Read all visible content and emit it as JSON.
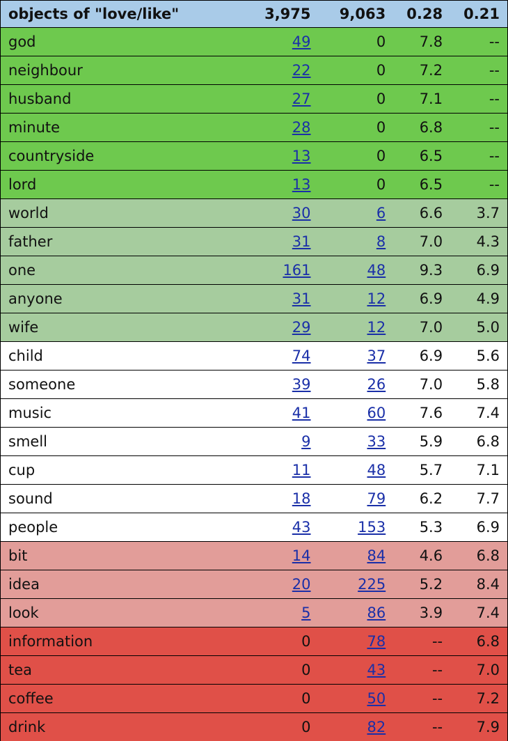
{
  "header": {
    "word": "objects of \"love/like\"",
    "n1": "3,975",
    "n2": "9,063",
    "s1": "0.28",
    "s2": "0.21"
  },
  "colors": {
    "header_bg": "#a9cbe8",
    "green_strong": "#6ec94e",
    "green_light": "#a6cc9e",
    "white": "#ffffff",
    "red_light": "#e29d99",
    "red_strong": "#e05048",
    "link": "#1a2fa8"
  },
  "rows": [
    {
      "cat": "g1",
      "word": "god",
      "n1": "49",
      "n1_link": true,
      "n2": "0",
      "n2_link": false,
      "s1": "7.8",
      "s2": "--"
    },
    {
      "cat": "g1",
      "word": "neighbour",
      "n1": "22",
      "n1_link": true,
      "n2": "0",
      "n2_link": false,
      "s1": "7.2",
      "s2": "--"
    },
    {
      "cat": "g1",
      "word": "husband",
      "n1": "27",
      "n1_link": true,
      "n2": "0",
      "n2_link": false,
      "s1": "7.1",
      "s2": "--"
    },
    {
      "cat": "g1",
      "word": "minute",
      "n1": "28",
      "n1_link": true,
      "n2": "0",
      "n2_link": false,
      "s1": "6.8",
      "s2": "--"
    },
    {
      "cat": "g1",
      "word": "countryside",
      "n1": "13",
      "n1_link": true,
      "n2": "0",
      "n2_link": false,
      "s1": "6.5",
      "s2": "--"
    },
    {
      "cat": "g1",
      "word": "lord",
      "n1": "13",
      "n1_link": true,
      "n2": "0",
      "n2_link": false,
      "s1": "6.5",
      "s2": "--"
    },
    {
      "cat": "g2",
      "word": "world",
      "n1": "30",
      "n1_link": true,
      "n2": "6",
      "n2_link": true,
      "s1": "6.6",
      "s2": "3.7"
    },
    {
      "cat": "g2",
      "word": "father",
      "n1": "31",
      "n1_link": true,
      "n2": "8",
      "n2_link": true,
      "s1": "7.0",
      "s2": "4.3"
    },
    {
      "cat": "g2",
      "word": "one",
      "n1": "161",
      "n1_link": true,
      "n2": "48",
      "n2_link": true,
      "s1": "9.3",
      "s2": "6.9"
    },
    {
      "cat": "g2",
      "word": "anyone",
      "n1": "31",
      "n1_link": true,
      "n2": "12",
      "n2_link": true,
      "s1": "6.9",
      "s2": "4.9"
    },
    {
      "cat": "g2",
      "word": "wife",
      "n1": "29",
      "n1_link": true,
      "n2": "12",
      "n2_link": true,
      "s1": "7.0",
      "s2": "5.0"
    },
    {
      "cat": "w",
      "word": "child",
      "n1": "74",
      "n1_link": true,
      "n2": "37",
      "n2_link": true,
      "s1": "6.9",
      "s2": "5.6"
    },
    {
      "cat": "w",
      "word": "someone",
      "n1": "39",
      "n1_link": true,
      "n2": "26",
      "n2_link": true,
      "s1": "7.0",
      "s2": "5.8"
    },
    {
      "cat": "w",
      "word": "music",
      "n1": "41",
      "n1_link": true,
      "n2": "60",
      "n2_link": true,
      "s1": "7.6",
      "s2": "7.4"
    },
    {
      "cat": "w",
      "word": "smell",
      "n1": "9",
      "n1_link": true,
      "n2": "33",
      "n2_link": true,
      "s1": "5.9",
      "s2": "6.8"
    },
    {
      "cat": "w",
      "word": "cup",
      "n1": "11",
      "n1_link": true,
      "n2": "48",
      "n2_link": true,
      "s1": "5.7",
      "s2": "7.1"
    },
    {
      "cat": "w",
      "word": "sound",
      "n1": "18",
      "n1_link": true,
      "n2": "79",
      "n2_link": true,
      "s1": "6.2",
      "s2": "7.7"
    },
    {
      "cat": "w",
      "word": "people",
      "n1": "43",
      "n1_link": true,
      "n2": "153",
      "n2_link": true,
      "s1": "5.3",
      "s2": "6.9"
    },
    {
      "cat": "r1",
      "word": "bit",
      "n1": "14",
      "n1_link": true,
      "n2": "84",
      "n2_link": true,
      "s1": "4.6",
      "s2": "6.8"
    },
    {
      "cat": "r1",
      "word": "idea",
      "n1": "20",
      "n1_link": true,
      "n2": "225",
      "n2_link": true,
      "s1": "5.2",
      "s2": "8.4"
    },
    {
      "cat": "r1",
      "word": "look",
      "n1": "5",
      "n1_link": true,
      "n2": "86",
      "n2_link": true,
      "s1": "3.9",
      "s2": "7.4"
    },
    {
      "cat": "r2",
      "word": "information",
      "n1": "0",
      "n1_link": false,
      "n2": "78",
      "n2_link": true,
      "s1": "--",
      "s2": "6.8"
    },
    {
      "cat": "r2",
      "word": "tea",
      "n1": "0",
      "n1_link": false,
      "n2": "43",
      "n2_link": true,
      "s1": "--",
      "s2": "7.0"
    },
    {
      "cat": "r2",
      "word": "coffee",
      "n1": "0",
      "n1_link": false,
      "n2": "50",
      "n2_link": true,
      "s1": "--",
      "s2": "7.2"
    },
    {
      "cat": "r2",
      "word": "drink",
      "n1": "0",
      "n1_link": false,
      "n2": "82",
      "n2_link": true,
      "s1": "--",
      "s2": "7.9"
    }
  ]
}
